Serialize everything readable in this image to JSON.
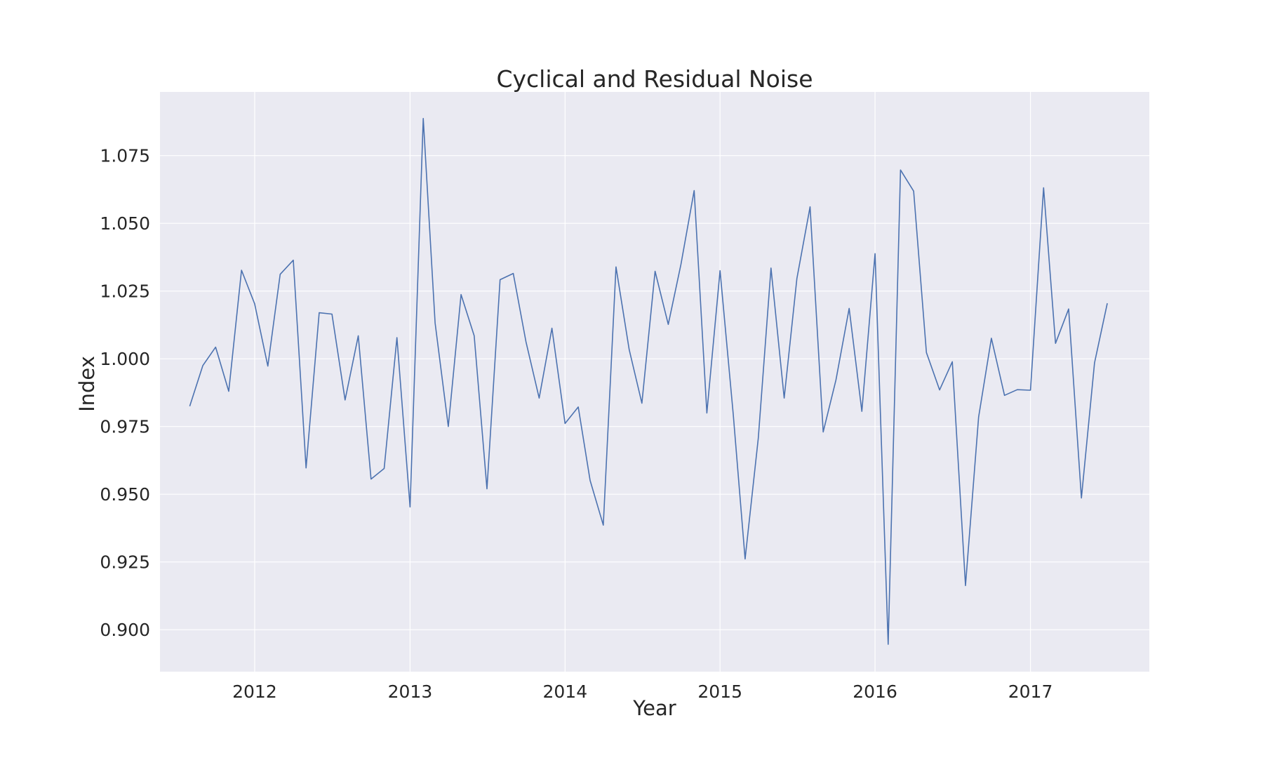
{
  "chart_data": {
    "type": "line",
    "title": "Cyclical and Residual Noise",
    "xlabel": "Year",
    "ylabel": "Index",
    "x_axis_type": "date",
    "xlim": [
      "2011-05-23",
      "2017-10-08"
    ],
    "ylim": [
      0.8845,
      1.0985
    ],
    "yticks": [
      0.9,
      0.925,
      0.95,
      0.975,
      1.0,
      1.025,
      1.05,
      1.075
    ],
    "ytick_labels": [
      "0.900",
      "0.925",
      "0.950",
      "0.975",
      "1.000",
      "1.025",
      "1.050",
      "1.075"
    ],
    "xticks": [
      "2012-01-01",
      "2013-01-01",
      "2014-01-01",
      "2015-01-01",
      "2016-01-01",
      "2017-01-01"
    ],
    "xtick_labels": [
      "2012",
      "2013",
      "2014",
      "2015",
      "2016",
      "2017"
    ],
    "grid": true,
    "background_color": "#eaeaf2",
    "line_color": "#4c72b0",
    "series": [
      {
        "name": "",
        "x": [
          "2011-08-01",
          "2011-09-01",
          "2011-10-01",
          "2011-11-01",
          "2011-12-01",
          "2012-01-01",
          "2012-02-01",
          "2012-03-01",
          "2012-04-01",
          "2012-05-01",
          "2012-06-01",
          "2012-07-01",
          "2012-08-01",
          "2012-09-01",
          "2012-10-01",
          "2012-11-01",
          "2012-12-01",
          "2013-01-01",
          "2013-02-01",
          "2013-03-01",
          "2013-04-01",
          "2013-05-01",
          "2013-06-01",
          "2013-07-01",
          "2013-08-01",
          "2013-09-01",
          "2013-10-01",
          "2013-11-01",
          "2013-12-01",
          "2014-01-01",
          "2014-02-01",
          "2014-03-01",
          "2014-04-01",
          "2014-05-01",
          "2014-06-01",
          "2014-07-01",
          "2014-08-01",
          "2014-09-01",
          "2014-10-01",
          "2014-11-01",
          "2014-12-01",
          "2015-01-01",
          "2015-02-01",
          "2015-03-01",
          "2015-04-01",
          "2015-05-01",
          "2015-06-01",
          "2015-07-01",
          "2015-08-01",
          "2015-09-01",
          "2015-10-01",
          "2015-11-01",
          "2015-12-01",
          "2016-01-01",
          "2016-02-01",
          "2016-03-01",
          "2016-04-01",
          "2016-05-01",
          "2016-06-01",
          "2016-07-01",
          "2016-08-01",
          "2016-09-01",
          "2016-10-01",
          "2016-11-01",
          "2016-12-01",
          "2017-01-01",
          "2017-02-01",
          "2017-03-01",
          "2017-04-01",
          "2017-05-01",
          "2017-06-01",
          "2017-07-01"
        ],
        "values": [
          0.9825,
          0.9975,
          1.0043,
          0.988,
          1.0327,
          1.0203,
          0.9973,
          1.0312,
          1.0364,
          0.9597,
          1.017,
          1.0165,
          0.9848,
          1.0085,
          0.9556,
          0.9595,
          1.0078,
          0.9453,
          1.0887,
          1.0132,
          0.975,
          1.0237,
          1.0085,
          0.952,
          1.0292,
          1.0315,
          1.0063,
          0.9855,
          1.0113,
          0.9761,
          0.9822,
          0.9551,
          0.9386,
          1.0339,
          1.0034,
          0.9836,
          1.0323,
          1.0127,
          1.0349,
          1.0621,
          0.98,
          1.0325,
          0.9795,
          0.9261,
          0.9707,
          1.0335,
          0.9855,
          1.0296,
          1.0561,
          0.973,
          0.9922,
          1.0186,
          0.9806,
          1.0388,
          0.8946,
          1.0697,
          1.0619,
          1.0023,
          0.9885,
          0.9989,
          0.9163,
          0.9785,
          1.0076,
          0.9865,
          0.9886,
          0.9884,
          1.0631,
          1.0057,
          1.0184,
          0.9486,
          0.9985,
          1.0205
        ]
      }
    ]
  }
}
